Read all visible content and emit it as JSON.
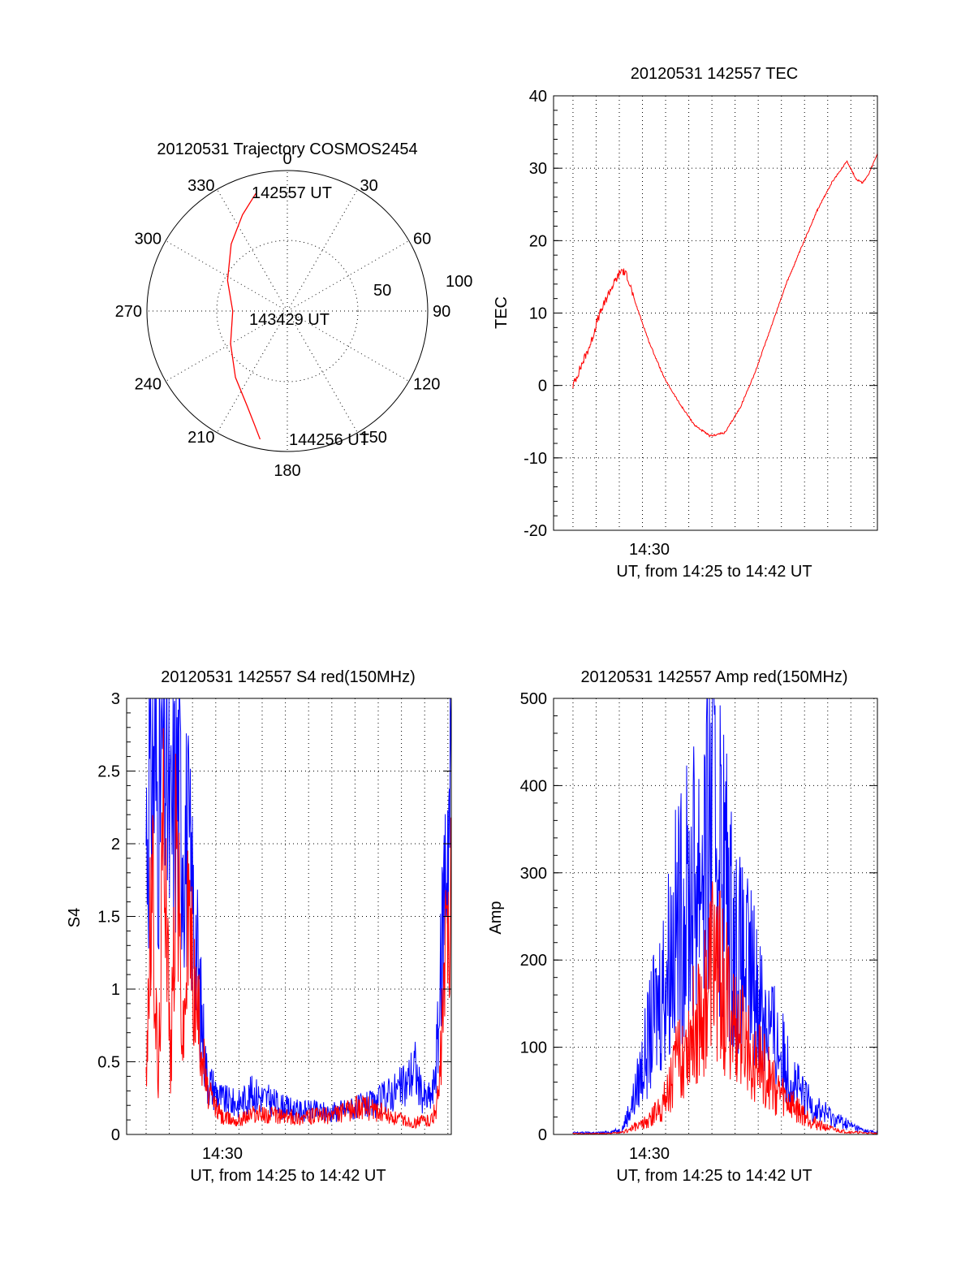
{
  "colors": {
    "red": "#ff0000",
    "blue": "#0000ff",
    "axis": "#000000"
  },
  "chart_data": [
    {
      "id": "trajectory",
      "type": "scatter",
      "subtype": "polar",
      "title": "20120531 Trajectory COSMOS2454",
      "angle_labels": [
        "0",
        "30",
        "60",
        "90",
        "120",
        "150",
        "180",
        "210",
        "240",
        "270",
        "300",
        "330"
      ],
      "radial_labels": [
        "50",
        "100"
      ],
      "grid": true,
      "series": [
        {
          "color": "#ff0000",
          "points": [
            {
              "azimuth": 345,
              "elev": 12
            },
            {
              "azimuth": 335,
              "elev": 22
            },
            {
              "azimuth": 320,
              "elev": 34
            },
            {
              "azimuth": 297,
              "elev": 47
            },
            {
              "azimuth": 270,
              "elev": 55
            },
            {
              "azimuth": 240,
              "elev": 48
            },
            {
              "azimuth": 218,
              "elev": 36
            },
            {
              "azimuth": 203,
              "elev": 24
            },
            {
              "azimuth": 196,
              "elev": 14
            },
            {
              "azimuth": 192,
              "elev": 6
            }
          ]
        }
      ],
      "annotations": [
        "142557 UT",
        "143429 UT",
        "144256 UT"
      ]
    },
    {
      "id": "tec",
      "type": "line",
      "title": "20120531 142557 TEC",
      "xlabel": "UT, from 14:25 to 14:42 UT",
      "ylabel": "TEC",
      "xtick_label": "14:30",
      "ylim": [
        -20,
        40
      ],
      "yticks": [
        "-20",
        "-10",
        "0",
        "10",
        "20",
        "30",
        "40"
      ],
      "grid": true,
      "series": [
        {
          "color": "#ff0000",
          "x": [
            0.0,
            0.02,
            0.04,
            0.06,
            0.08,
            0.1,
            0.12,
            0.14,
            0.16,
            0.18,
            0.2,
            0.25,
            0.3,
            0.35,
            0.4,
            0.45,
            0.5,
            0.55,
            0.6,
            0.65,
            0.7,
            0.75,
            0.8,
            0.85,
            0.9,
            0.93,
            0.95,
            0.97,
            0.98,
            1.0
          ],
          "values": [
            0,
            2,
            4,
            6,
            9,
            11,
            13,
            14.5,
            16,
            15,
            12,
            6,
            1,
            -2.5,
            -5.5,
            -7,
            -6.5,
            -3,
            2,
            8,
            14,
            19,
            24,
            28,
            31,
            28.5,
            28,
            29,
            30,
            32
          ]
        }
      ]
    },
    {
      "id": "s4",
      "type": "line",
      "title": "20120531 142557 S4 red(150MHz)",
      "xlabel": "UT, from 14:25 to 14:42 UT",
      "ylabel": "S4",
      "xtick_label": "14:30",
      "ylim": [
        0,
        3
      ],
      "yticks": [
        "0",
        "0.5",
        "1",
        "1.5",
        "2",
        "2.5",
        "3"
      ],
      "grid": true,
      "series": [
        {
          "color": "#0000ff",
          "x": [
            0.0,
            0.02,
            0.04,
            0.06,
            0.08,
            0.1,
            0.12,
            0.14,
            0.16,
            0.18,
            0.2,
            0.25,
            0.3,
            0.35,
            0.4,
            0.45,
            0.5,
            0.55,
            0.6,
            0.65,
            0.7,
            0.75,
            0.8,
            0.85,
            0.88,
            0.9,
            0.92,
            0.94,
            0.96,
            0.98,
            1.0
          ],
          "values": [
            2.2,
            2.8,
            2.4,
            2.9,
            2.1,
            2.6,
            2.3,
            2.0,
            1.5,
            0.9,
            0.4,
            0.25,
            0.22,
            0.3,
            0.25,
            0.2,
            0.17,
            0.17,
            0.16,
            0.18,
            0.2,
            0.22,
            0.3,
            0.35,
            0.5,
            0.3,
            0.25,
            0.3,
            0.8,
            2.0,
            2.6
          ]
        },
        {
          "color": "#ff0000",
          "x": [
            0.0,
            0.02,
            0.04,
            0.06,
            0.08,
            0.1,
            0.12,
            0.14,
            0.16,
            0.18,
            0.2,
            0.25,
            0.3,
            0.35,
            0.4,
            0.45,
            0.5,
            0.55,
            0.6,
            0.65,
            0.7,
            0.75,
            0.8,
            0.85,
            0.88,
            0.9,
            0.92,
            0.94,
            0.96,
            0.98,
            1.0
          ],
          "values": [
            0.5,
            1.8,
            0.3,
            2.6,
            0.4,
            2.2,
            0.6,
            1.6,
            1.0,
            0.7,
            0.3,
            0.12,
            0.1,
            0.15,
            0.14,
            0.13,
            0.12,
            0.13,
            0.14,
            0.16,
            0.2,
            0.18,
            0.12,
            0.1,
            0.08,
            0.1,
            0.1,
            0.12,
            0.3,
            1.2,
            2.0
          ]
        }
      ]
    },
    {
      "id": "amp",
      "type": "line",
      "title": "20120531 142557 Amp red(150MHz)",
      "xlabel": "UT, from 14:25 to 14:42 UT",
      "ylabel": "Amp",
      "xtick_label": "14:30",
      "ylim": [
        0,
        500
      ],
      "yticks": [
        "0",
        "100",
        "200",
        "300",
        "400",
        "500"
      ],
      "grid": true,
      "series": [
        {
          "color": "#0000ff",
          "x": [
            0.0,
            0.1,
            0.16,
            0.2,
            0.25,
            0.3,
            0.34,
            0.38,
            0.42,
            0.44,
            0.46,
            0.48,
            0.5,
            0.52,
            0.55,
            0.6,
            0.65,
            0.7,
            0.75,
            0.8,
            0.85,
            0.9,
            0.95,
            1.0
          ],
          "values": [
            2,
            2,
            5,
            40,
            110,
            180,
            240,
            270,
            320,
            340,
            400,
            340,
            300,
            240,
            200,
            170,
            120,
            80,
            45,
            30,
            20,
            12,
            5,
            2
          ]
        },
        {
          "color": "#ff0000",
          "x": [
            0.0,
            0.1,
            0.16,
            0.2,
            0.25,
            0.3,
            0.34,
            0.38,
            0.42,
            0.44,
            0.46,
            0.48,
            0.5,
            0.52,
            0.55,
            0.6,
            0.65,
            0.7,
            0.75,
            0.8,
            0.85,
            0.9,
            0.95,
            1.0
          ],
          "values": [
            1,
            1,
            2,
            8,
            15,
            40,
            80,
            110,
            140,
            160,
            200,
            180,
            160,
            130,
            110,
            90,
            60,
            40,
            25,
            12,
            6,
            3,
            2,
            1
          ]
        }
      ]
    }
  ]
}
